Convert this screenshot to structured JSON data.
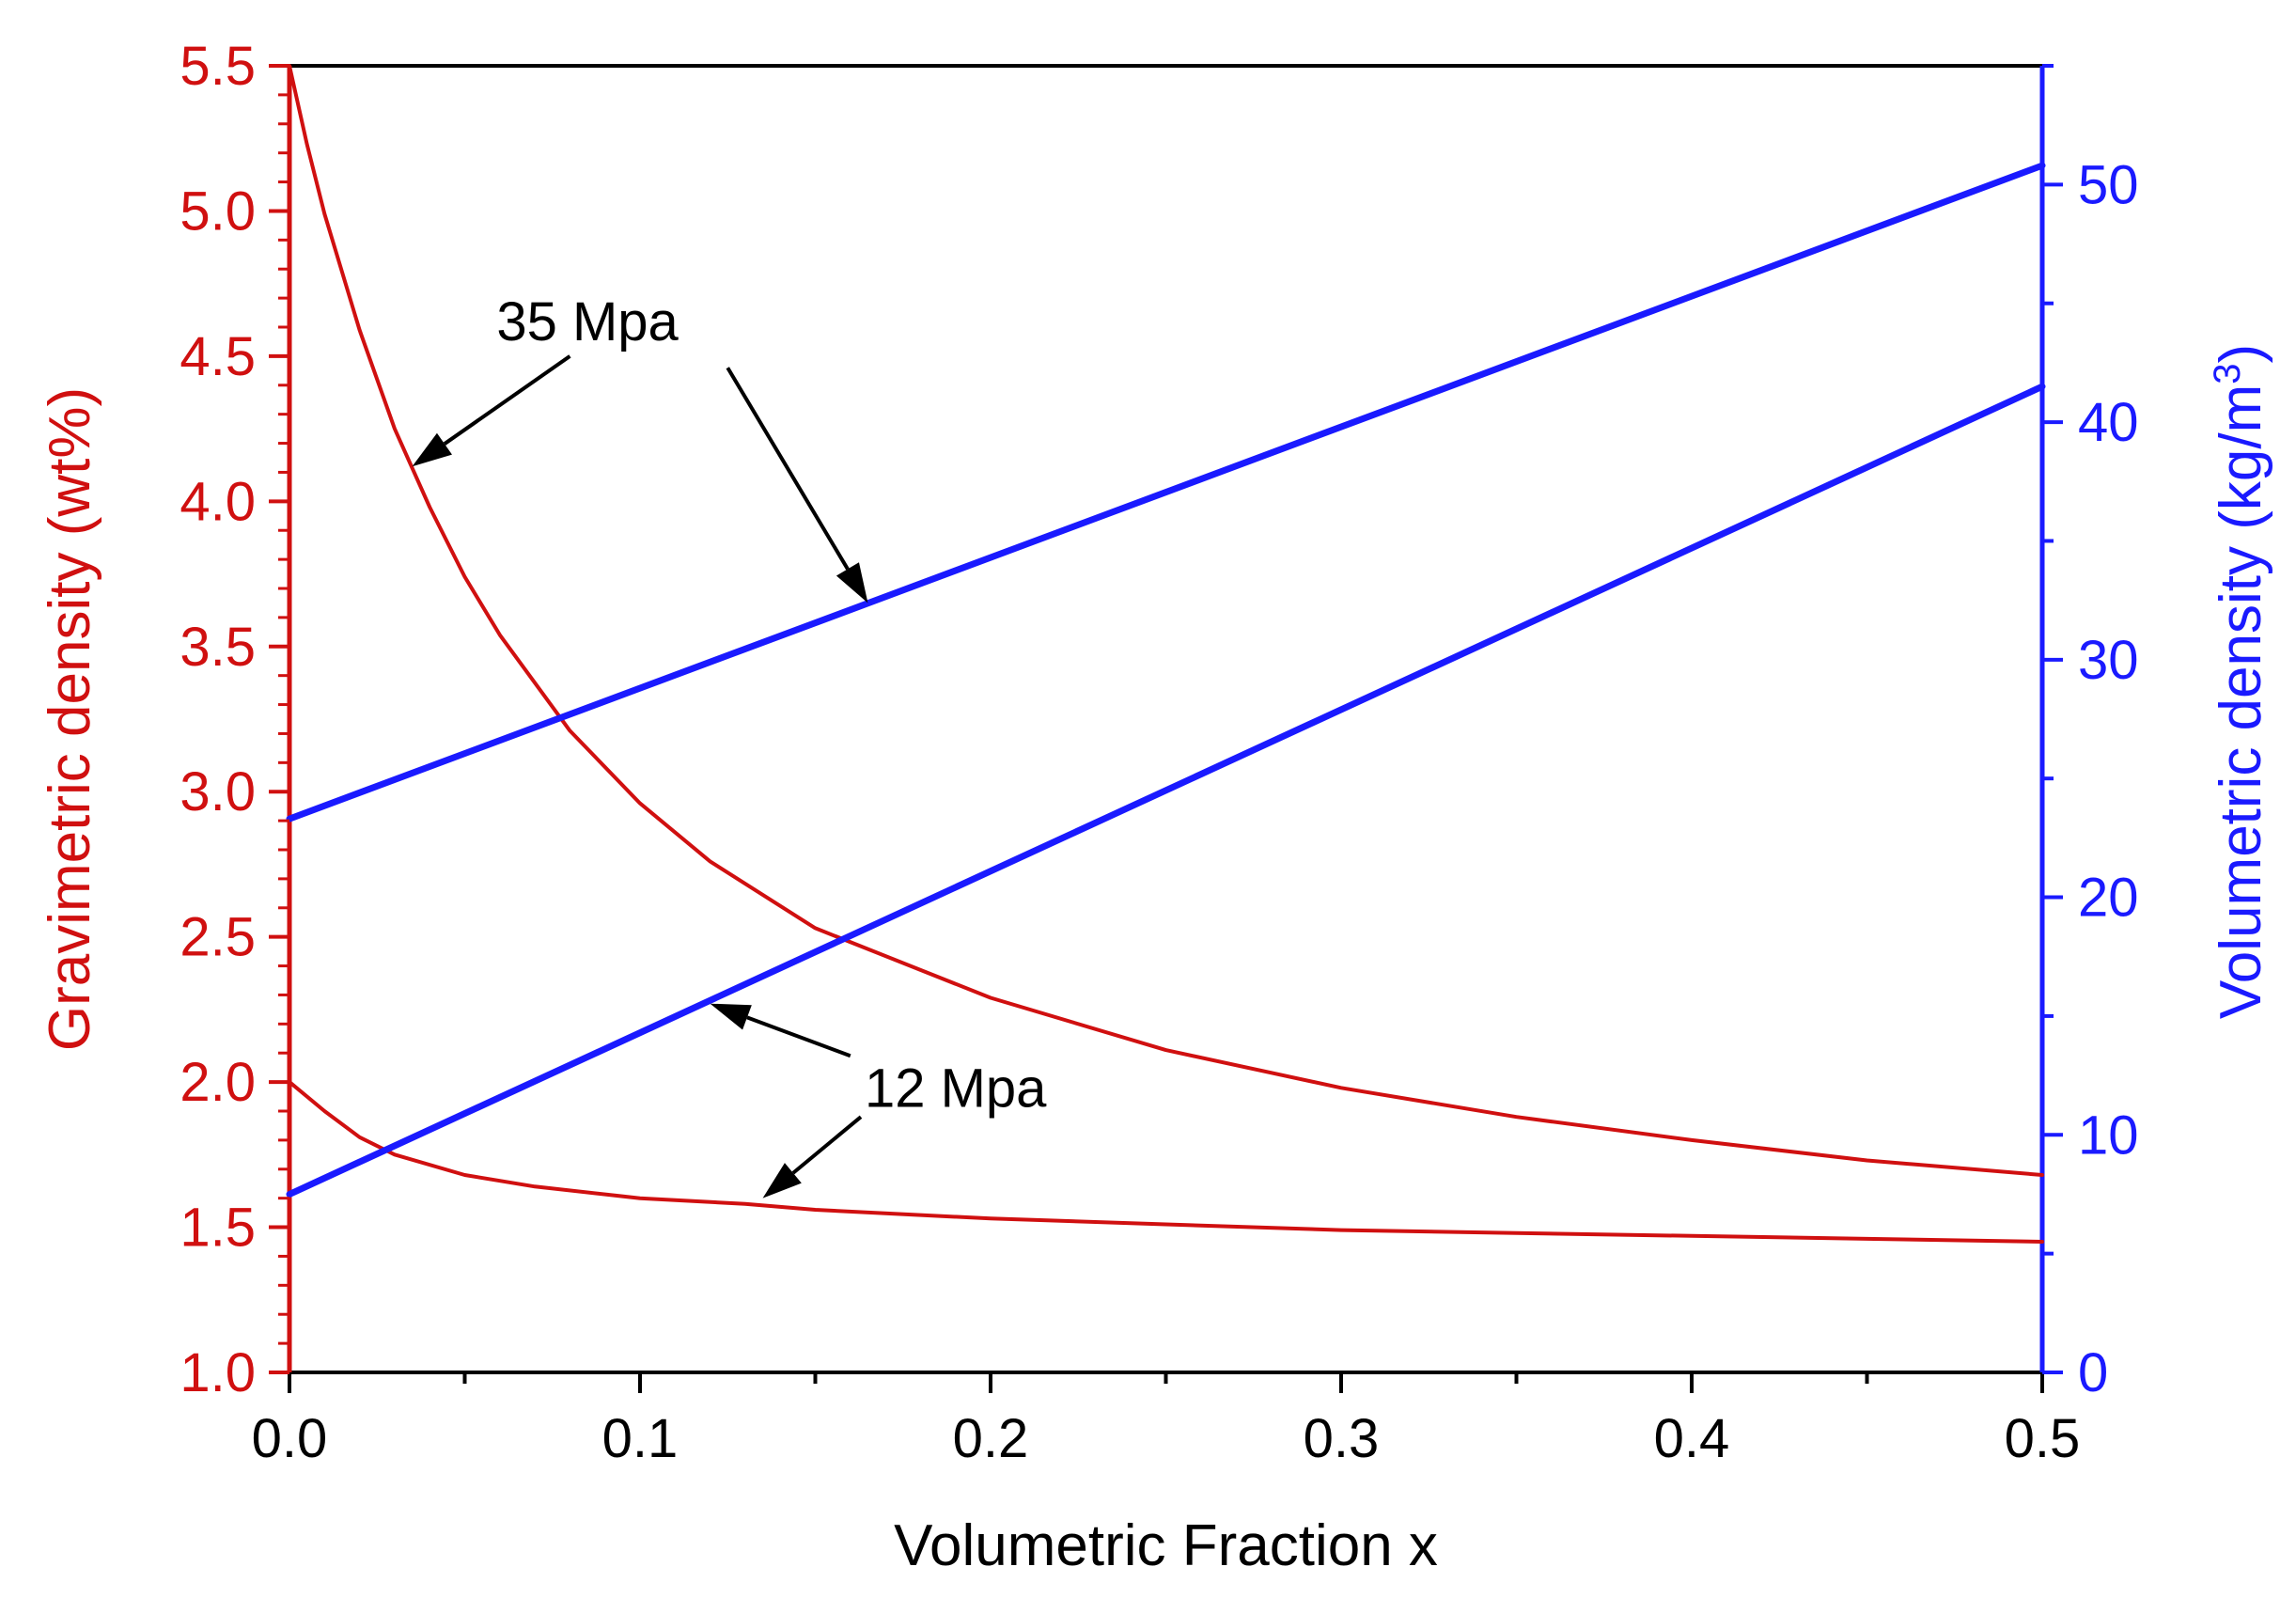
{
  "chart_data": {
    "type": "line",
    "xlabel": "Volumetric Fraction x",
    "ylabel_left": "Gravimetric density (wt%)",
    "ylabel_right": "Volumetric density (kg/m",
    "ylabel_right_superscript": "3",
    "ylabel_right_suffix": ")",
    "xlim": [
      0,
      0.5
    ],
    "ylim_left": [
      1.0,
      5.5
    ],
    "ylim_right": [
      0,
      55
    ],
    "x_ticks": [
      "0.0",
      "0.1",
      "0.2",
      "0.3",
      "0.4",
      "0.5"
    ],
    "x_tick_values": [
      0,
      0.1,
      0.2,
      0.3,
      0.4,
      0.5
    ],
    "y_left_ticks": [
      "1.0",
      "1.5",
      "2.0",
      "2.5",
      "3.0",
      "3.5",
      "4.0",
      "4.5",
      "5.0",
      "5.5"
    ],
    "y_left_tick_values": [
      1.0,
      1.5,
      2.0,
      2.5,
      3.0,
      3.5,
      4.0,
      4.5,
      5.0,
      5.5
    ],
    "y_right_ticks": [
      "0",
      "10",
      "20",
      "30",
      "40",
      "50"
    ],
    "y_right_tick_values": [
      0,
      10,
      20,
      30,
      40,
      50
    ],
    "colors": {
      "gravimetric": "#d01010",
      "volumetric": "#1a1aff",
      "frame": "#000000"
    },
    "series": [
      {
        "name": "Gravimetric density 35 Mpa",
        "axis": "left",
        "x": [
          0,
          0.005,
          0.01,
          0.02,
          0.03,
          0.04,
          0.05,
          0.06,
          0.08,
          0.1,
          0.12,
          0.15,
          0.2,
          0.25,
          0.3,
          0.35,
          0.4,
          0.45,
          0.5
        ],
        "values": [
          5.5,
          5.23,
          4.99,
          4.59,
          4.25,
          3.98,
          3.74,
          3.54,
          3.21,
          2.96,
          2.76,
          2.53,
          2.29,
          2.11,
          1.98,
          1.88,
          1.8,
          1.73,
          1.68
        ]
      },
      {
        "name": "Gravimetric density 12 Mpa",
        "axis": "left",
        "x": [
          0,
          0.01,
          0.02,
          0.03,
          0.05,
          0.07,
          0.1,
          0.13,
          0.15,
          0.2,
          0.25,
          0.3,
          0.35,
          0.4,
          0.45,
          0.5
        ],
        "values": [
          2.0,
          1.9,
          1.81,
          1.75,
          1.68,
          1.64,
          1.6,
          1.58,
          1.56,
          1.53,
          1.51,
          1.49,
          1.48,
          1.47,
          1.46,
          1.45
        ]
      },
      {
        "name": "Volumetric density 35 Mpa",
        "axis": "right",
        "x": [
          0,
          0.5
        ],
        "values": [
          23.3,
          50.8
        ]
      },
      {
        "name": "Volumetric density 12 Mpa",
        "axis": "right",
        "x": [
          0,
          0.5
        ],
        "values": [
          7.5,
          41.5
        ]
      }
    ],
    "annotations": [
      {
        "text": "35 Mpa",
        "x": 0.085,
        "y_left": 4.62
      },
      {
        "text": "12 Mpa",
        "x": 0.19,
        "y_left": 1.98
      }
    ],
    "arrows": [
      {
        "name": "arrow-35-gravimetric",
        "from": [
          0.08,
          4.5
        ],
        "to": [
          0.035,
          4.12
        ]
      },
      {
        "name": "arrow-35-volumetric",
        "from": [
          0.125,
          4.46
        ],
        "to": [
          0.165,
          3.65
        ]
      },
      {
        "name": "arrow-12-volumetric",
        "from": [
          0.16,
          2.09
        ],
        "to": [
          0.12,
          2.27
        ]
      },
      {
        "name": "arrow-12-gravimetric",
        "from": [
          0.163,
          1.88
        ],
        "to": [
          0.135,
          1.6
        ]
      }
    ]
  }
}
